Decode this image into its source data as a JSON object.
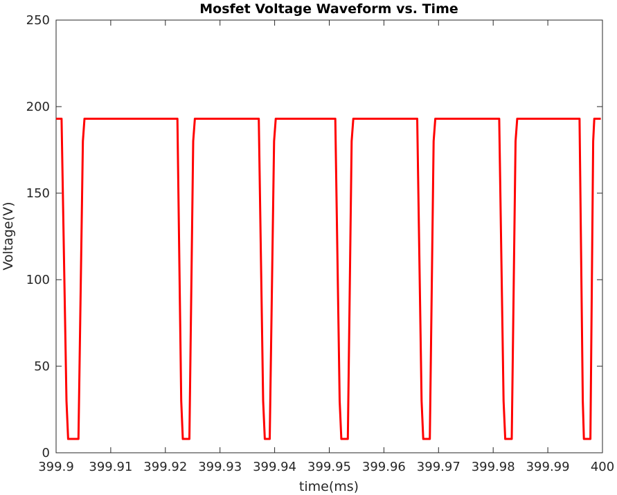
{
  "chart_data": {
    "type": "line",
    "title": "Mosfet Voltage Waveform vs. Time",
    "xlabel": "time(ms)",
    "ylabel": "Voltage(V)",
    "xlim": [
      399.9,
      400.0
    ],
    "ylim": [
      0,
      250
    ],
    "x_ticks": [
      399.9,
      399.91,
      399.92,
      399.93,
      399.94,
      399.95,
      399.96,
      399.97,
      399.98,
      399.99,
      400
    ],
    "x_tick_labels": [
      "399.9",
      "399.91",
      "399.92",
      "399.93",
      "399.94",
      "399.95",
      "399.96",
      "399.97",
      "399.98",
      "399.99",
      "400"
    ],
    "y_ticks": [
      0,
      50,
      100,
      150,
      200,
      250
    ],
    "y_tick_labels": [
      "0",
      "50",
      "100",
      "150",
      "200",
      "250"
    ],
    "grid": false,
    "line_color": "#ff0000",
    "series": [
      {
        "x": [
          399.9,
          399.901,
          399.9019,
          399.9022,
          399.9041,
          399.9049,
          399.9052,
          399.9222,
          399.9229,
          399.9232,
          399.9244,
          399.9251,
          399.9254,
          399.9371,
          399.9379,
          399.9382,
          399.9391,
          399.9399,
          399.9402,
          399.9511,
          399.9519,
          399.9522,
          399.9534,
          399.9541,
          399.9544,
          399.9661,
          399.9669,
          399.9672,
          399.9684,
          399.9691,
          399.9694,
          399.9811,
          399.9819,
          399.9822,
          399.9834,
          399.9841,
          399.9844,
          399.9958,
          399.9964,
          399.9966,
          399.9978,
          399.9983,
          399.9985,
          399.9997
        ],
        "y": [
          193,
          193,
          30,
          8,
          8,
          180,
          193,
          193,
          30,
          8,
          8,
          180,
          193,
          193,
          30,
          8,
          8,
          180,
          193,
          193,
          30,
          8,
          8,
          180,
          193,
          193,
          30,
          8,
          8,
          180,
          193,
          193,
          30,
          8,
          8,
          180,
          193,
          193,
          30,
          8,
          8,
          180,
          193,
          193
        ]
      }
    ]
  }
}
